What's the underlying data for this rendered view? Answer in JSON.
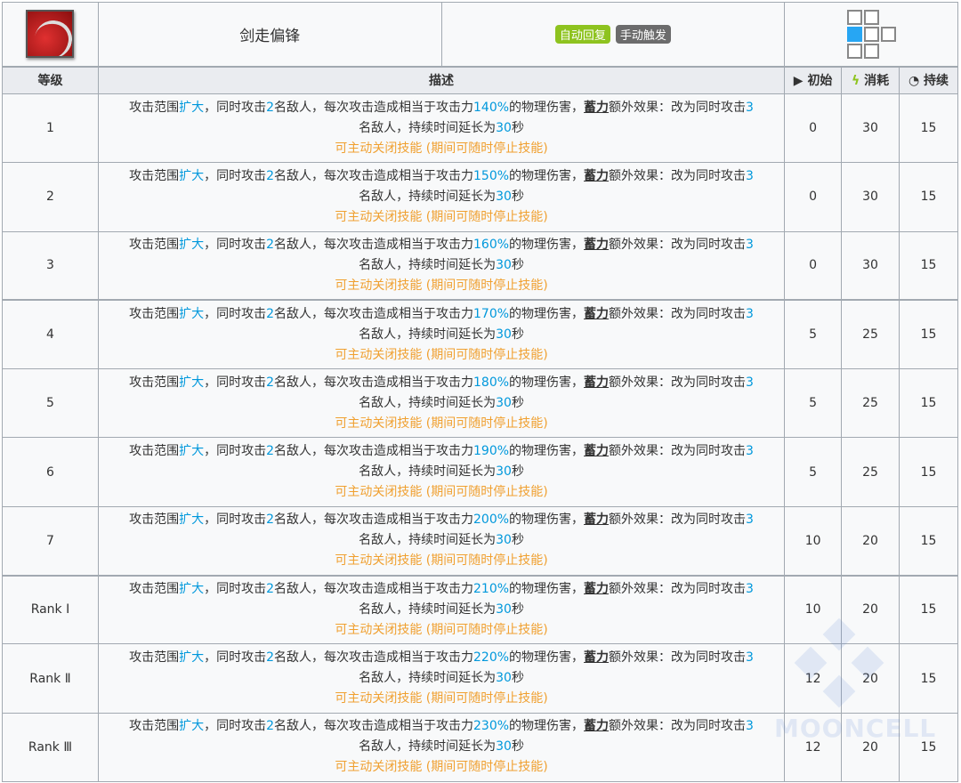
{
  "skill": {
    "name": "剑走偏锋",
    "tags": [
      {
        "label": "自动回复",
        "color": "#8ec31f"
      },
      {
        "label": "手动触发",
        "color": "#6c6c6c"
      }
    ],
    "icon": "sword-slash-skill-icon",
    "range_grid": [
      [
        1,
        1,
        0
      ],
      [
        2,
        1,
        1
      ],
      [
        1,
        1,
        0
      ]
    ]
  },
  "headers": {
    "level": "等级",
    "description": "描述",
    "initial": "初始",
    "cost": "消耗",
    "duration": "持续"
  },
  "desc": {
    "s1": "攻击范围",
    "s2": "扩大",
    "s3": "，同时攻击",
    "s4": "2",
    "s5": "名敌人，每次攻击造成相当于攻击力",
    "s7": "的物理伤害，",
    "s8": "蓄力",
    "s9": "额外效果：改为同时攻击",
    "s10": "3",
    "s11": "名敌人，持续时间延长为",
    "s12": "30",
    "s13": "秒",
    "note": "可主动关闭技能 (期间可随时停止技能)"
  },
  "colors": {
    "highlight": "#0098dc",
    "note": "#f0a030",
    "header_bg": "#eaecf0",
    "cell_bg": "#f8f9fa"
  },
  "rows": [
    {
      "level": "1",
      "percent": "140%",
      "initial": "0",
      "cost": "30",
      "duration": "15"
    },
    {
      "level": "2",
      "percent": "150%",
      "initial": "0",
      "cost": "30",
      "duration": "15"
    },
    {
      "level": "3",
      "percent": "160%",
      "initial": "0",
      "cost": "30",
      "duration": "15"
    },
    {
      "level": "4",
      "percent": "170%",
      "initial": "5",
      "cost": "25",
      "duration": "15"
    },
    {
      "level": "5",
      "percent": "180%",
      "initial": "5",
      "cost": "25",
      "duration": "15"
    },
    {
      "level": "6",
      "percent": "190%",
      "initial": "5",
      "cost": "25",
      "duration": "15"
    },
    {
      "level": "7",
      "percent": "200%",
      "initial": "10",
      "cost": "20",
      "duration": "15"
    },
    {
      "level": "Rank Ⅰ",
      "percent": "210%",
      "initial": "10",
      "cost": "20",
      "duration": "15"
    },
    {
      "level": "Rank Ⅱ",
      "percent": "220%",
      "initial": "12",
      "cost": "20",
      "duration": "15"
    },
    {
      "level": "Rank Ⅲ",
      "percent": "230%",
      "initial": "12",
      "cost": "20",
      "duration": "15"
    }
  ],
  "watermark": "MOONCELL"
}
